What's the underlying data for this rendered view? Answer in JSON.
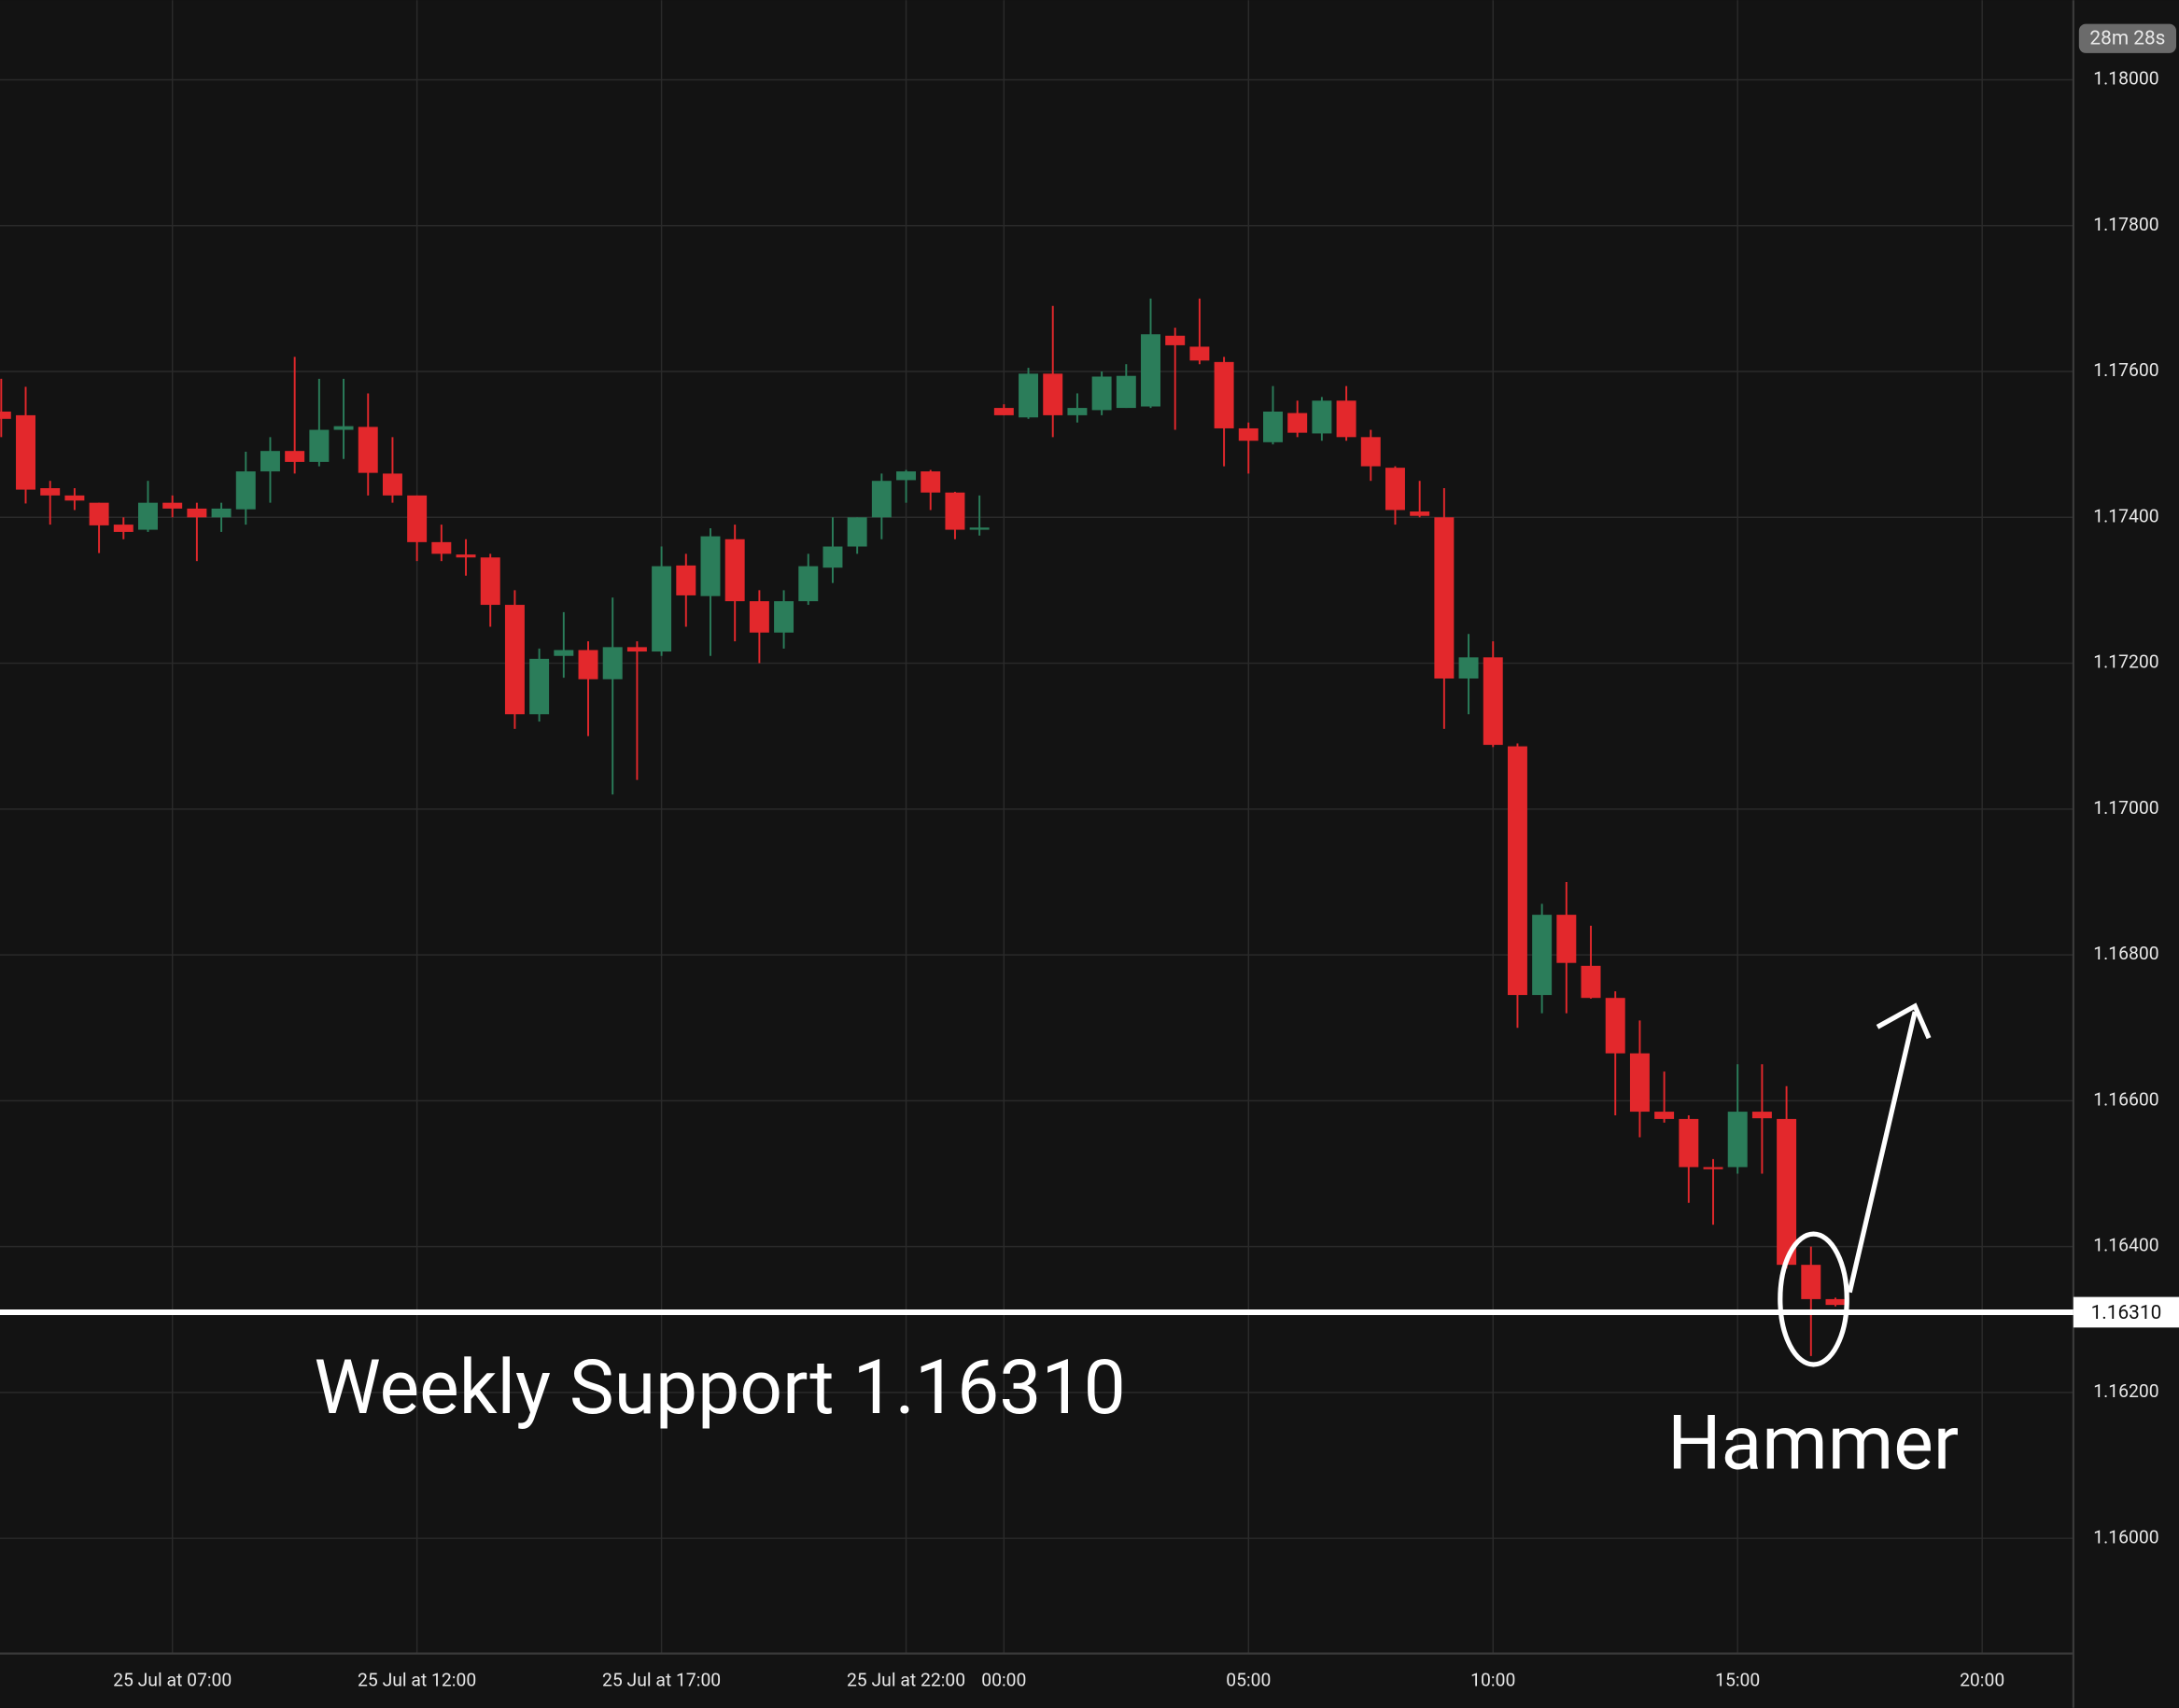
{
  "chart_data": {
    "type": "candlestick",
    "countdown": "28m 28s",
    "up_color": "#2b7d5a",
    "down_color": "#e3282c",
    "grid": true,
    "open": [
      1.17545,
      1.1754,
      1.1744,
      1.1743,
      1.1742,
      1.1739,
      1.17383,
      1.1742,
      1.17412,
      1.174,
      1.17411,
      1.17463,
      1.17491,
      1.17476,
      1.1752,
      1.17524,
      1.1746,
      1.1743,
      1.17366,
      1.17349,
      1.17345,
      1.1728,
      1.1713,
      1.1721,
      1.17218,
      1.17178,
      1.17222,
      1.17216,
      1.17334,
      1.17292,
      1.1737,
      1.17285,
      1.17242,
      1.17285,
      1.17331,
      1.1736,
      1.174,
      1.17451,
      1.17463,
      1.17434,
      1.17383,
      1.1755,
      1.17537,
      1.17597,
      1.1754,
      1.17547,
      1.1755,
      1.17552,
      1.17649,
      1.17634,
      1.17613,
      1.17522,
      1.17503,
      1.17543,
      1.17515,
      1.1756,
      1.1751,
      1.17468,
      1.17408,
      1.174,
      1.17179,
      1.17208,
      1.17086,
      1.16745,
      1.16855,
      1.16785,
      1.16741,
      1.16665,
      1.16585,
      1.16575,
      1.16509,
      1.16509,
      1.16585,
      1.16575,
      1.16375,
      1.16328
    ],
    "high": [
      1.1759,
      1.17579,
      1.1745,
      1.1744,
      1.1742,
      1.174,
      1.1745,
      1.1743,
      1.1742,
      1.1742,
      1.1749,
      1.1751,
      1.1762,
      1.1759,
      1.1759,
      1.1757,
      1.1751,
      1.1743,
      1.1739,
      1.1737,
      1.1735,
      1.173,
      1.1722,
      1.1727,
      1.1723,
      1.1729,
      1.1723,
      1.1736,
      1.1735,
      1.17385,
      1.1739,
      1.173,
      1.173,
      1.1735,
      1.174,
      1.174,
      1.1746,
      1.17465,
      1.17465,
      1.17435,
      1.1743,
      1.17555,
      1.17605,
      1.1769,
      1.1757,
      1.176,
      1.1761,
      1.177,
      1.1766,
      1.177,
      1.1762,
      1.1753,
      1.1758,
      1.1756,
      1.17565,
      1.1758,
      1.1752,
      1.1747,
      1.1745,
      1.1744,
      1.1724,
      1.1723,
      1.1709,
      1.1687,
      1.169,
      1.1684,
      1.1675,
      1.1671,
      1.1664,
      1.1658,
      1.1652,
      1.1665,
      1.1665,
      1.1662,
      1.164,
      1.1633
    ],
    "low": [
      1.1751,
      1.17419,
      1.1739,
      1.1741,
      1.17351,
      1.1737,
      1.1738,
      1.174,
      1.1734,
      1.1738,
      1.1739,
      1.1742,
      1.1746,
      1.1747,
      1.1748,
      1.1743,
      1.1742,
      1.1734,
      1.1734,
      1.1732,
      1.1725,
      1.1711,
      1.1712,
      1.1718,
      1.171,
      1.1702,
      1.1704,
      1.1721,
      1.1725,
      1.1721,
      1.1723,
      1.172,
      1.1722,
      1.1728,
      1.1731,
      1.1735,
      1.1737,
      1.1742,
      1.1741,
      1.1737,
      1.17375,
      1.1754,
      1.17535,
      1.1751,
      1.1753,
      1.1754,
      1.1755,
      1.1755,
      1.1752,
      1.1761,
      1.1747,
      1.1746,
      1.175,
      1.1751,
      1.17505,
      1.17505,
      1.1745,
      1.1739,
      1.174,
      1.1711,
      1.1713,
      1.17085,
      1.167,
      1.1672,
      1.1672,
      1.1674,
      1.1658,
      1.1655,
      1.1657,
      1.1646,
      1.1643,
      1.165,
      1.165,
      1.1637,
      1.1625,
      1.16318
    ],
    "close": [
      1.17535,
      1.17438,
      1.1743,
      1.17423,
      1.17389,
      1.1738,
      1.1742,
      1.17412,
      1.174,
      1.17412,
      1.17463,
      1.17491,
      1.17476,
      1.1752,
      1.17525,
      1.17461,
      1.1743,
      1.17366,
      1.1735,
      1.17345,
      1.1728,
      1.1713,
      1.17206,
      1.17218,
      1.17178,
      1.17222,
      1.17216,
      1.17333,
      1.17293,
      1.17374,
      1.17285,
      1.17242,
      1.17285,
      1.17333,
      1.1736,
      1.174,
      1.1745,
      1.17463,
      1.17434,
      1.17383,
      1.17386,
      1.1754,
      1.17597,
      1.1754,
      1.1755,
      1.17593,
      1.17594,
      1.17651,
      1.17636,
      1.17615,
      1.17522,
      1.17505,
      1.17545,
      1.17516,
      1.1756,
      1.1751,
      1.1747,
      1.1741,
      1.17402,
      1.17179,
      1.17208,
      1.17088,
      1.16745,
      1.16855,
      1.16789,
      1.16741,
      1.16665,
      1.16585,
      1.16575,
      1.16509,
      1.16507,
      1.16585,
      1.16576,
      1.16375,
      1.16328,
      1.1632
    ],
    "xlim": [
      -0.05,
      84.73
    ],
    "xticks": [
      {
        "value": 7,
        "label": "25 Jul at 07:00"
      },
      {
        "value": 17,
        "label": "25 Jul at 12:00"
      },
      {
        "value": 27,
        "label": "25 Jul at 17:00"
      },
      {
        "value": 37,
        "label": "25 Jul at 22:00"
      },
      {
        "value": 41,
        "label": "00:00"
      },
      {
        "value": 51,
        "label": "05:00"
      },
      {
        "value": 61,
        "label": "10:00"
      },
      {
        "value": 71,
        "label": "15:00"
      },
      {
        "value": 81,
        "label": "20:00"
      }
    ],
    "ylim": [
      1.15842,
      1.18109
    ],
    "yticks": [
      {
        "value": 1.16,
        "label": "1.16000"
      },
      {
        "value": 1.162,
        "label": "1.16200"
      },
      {
        "value": 1.164,
        "label": "1.16400"
      },
      {
        "value": 1.166,
        "label": "1.16600"
      },
      {
        "value": 1.168,
        "label": "1.16800"
      },
      {
        "value": 1.17,
        "label": "1.17000"
      },
      {
        "value": 1.172,
        "label": "1.17200"
      },
      {
        "value": 1.174,
        "label": "1.17400"
      },
      {
        "value": 1.176,
        "label": "1.17600"
      },
      {
        "value": 1.178,
        "label": "1.17800"
      },
      {
        "value": 1.18,
        "label": "1.18000"
      }
    ],
    "support_level": {
      "value": 1.1631,
      "label": "1.16310"
    },
    "annotations": [
      "Weekly Support 1.16310",
      "Hammer"
    ]
  }
}
